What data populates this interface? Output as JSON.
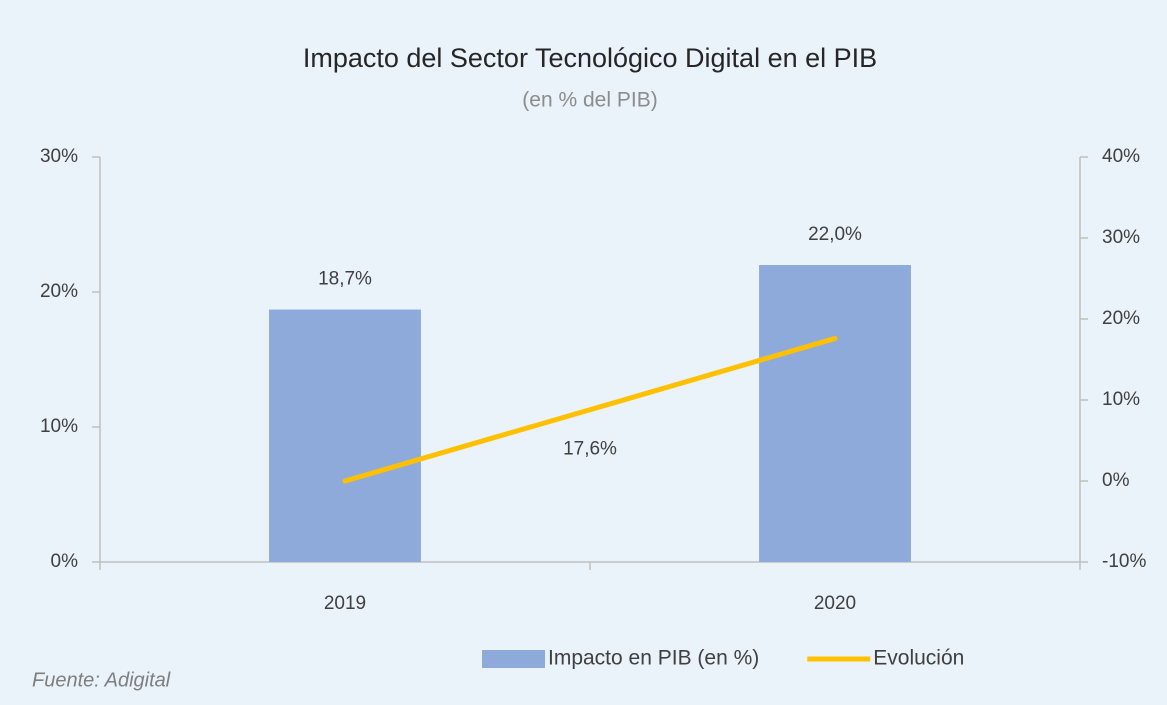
{
  "chart_data": {
    "type": "bar",
    "title": "Impacto del Sector Tecnológico Digital en el PIB",
    "subtitle": "(en % del PIB)",
    "source": "Fuente: Adigital",
    "categories": [
      "2019",
      "2020"
    ],
    "series": [
      {
        "name": "Impacto en PIB (en %)",
        "type": "bar",
        "color": "#8eaadb",
        "values": [
          18.7,
          22.0
        ],
        "value_labels": [
          "18,7%",
          "22,0%"
        ]
      },
      {
        "name": "Evolución",
        "type": "line",
        "axis": "y2",
        "color": "#ffc000",
        "values": [
          0,
          17.6
        ],
        "value_labels": [
          null,
          "17,6%"
        ]
      }
    ],
    "ylim": [
      0,
      30
    ],
    "yticks": [
      {
        "value": 0,
        "label": "0%"
      },
      {
        "value": 10,
        "label": "10%"
      },
      {
        "value": 20,
        "label": "20%"
      },
      {
        "value": 30,
        "label": "30%"
      }
    ],
    "y2lim": [
      -10,
      40
    ],
    "y2ticks": [
      {
        "value": -10,
        "label": "-10%"
      },
      {
        "value": 0,
        "label": "0%"
      },
      {
        "value": 10,
        "label": "10%"
      },
      {
        "value": 20,
        "label": "20%"
      },
      {
        "value": 30,
        "label": "30%"
      },
      {
        "value": 40,
        "label": "40%"
      }
    ],
    "grid": false,
    "legend": "bottom"
  }
}
